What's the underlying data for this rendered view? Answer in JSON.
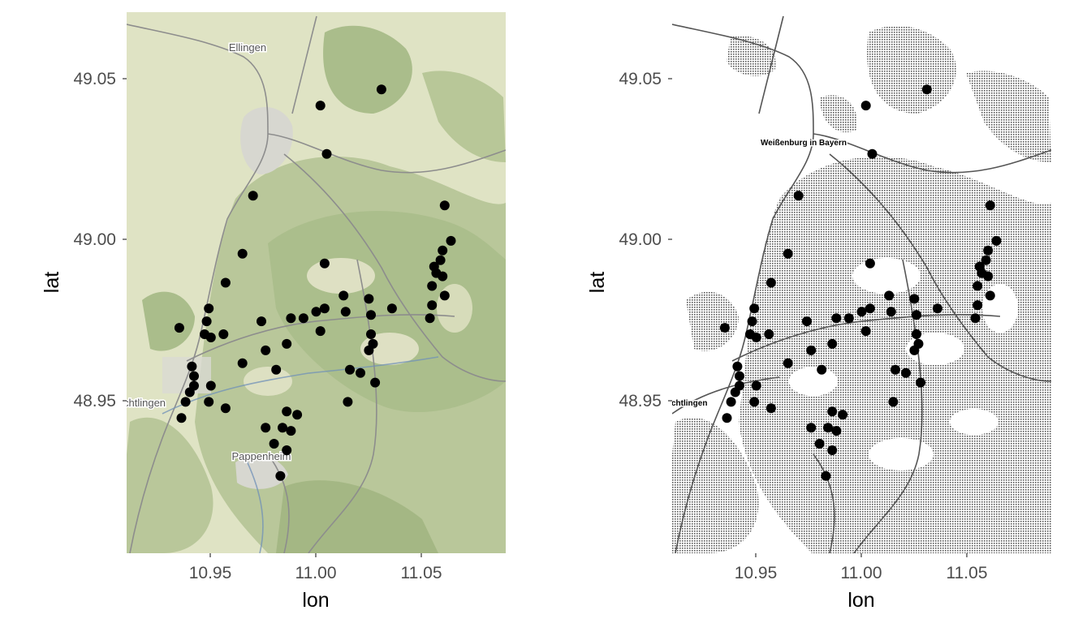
{
  "chart_data": [
    {
      "type": "scatter",
      "basemap": "terrain",
      "xlabel": "lon",
      "ylabel": "lat",
      "xlim": [
        10.91,
        11.09
      ],
      "ylim": [
        48.903,
        49.071
      ],
      "x_ticks": [
        "10.95",
        "11.00",
        "11.05"
      ],
      "y_ticks": [
        "48.95",
        "49.00",
        "49.05"
      ],
      "place_labels": [
        "Ellingen",
        "chtlingen",
        "Pappenheim"
      ]
    },
    {
      "type": "scatter",
      "basemap": "toner",
      "xlabel": "lon",
      "ylabel": "lat",
      "xlim": [
        10.91,
        11.09
      ],
      "ylim": [
        48.903,
        49.071
      ],
      "x_ticks": [
        "10.95",
        "11.00",
        "11.05"
      ],
      "y_ticks": [
        "48.95",
        "49.00",
        "49.05"
      ],
      "place_labels": [
        "Weißenburg in Bayern",
        "chtlingen"
      ]
    }
  ],
  "points": [
    [
      11.031,
      49.047
    ],
    [
      11.002,
      49.042
    ],
    [
      11.005,
      49.027
    ],
    [
      10.97,
      49.014
    ],
    [
      11.061,
      49.011
    ],
    [
      11.064,
      49.0
    ],
    [
      11.06,
      48.997
    ],
    [
      11.059,
      48.994
    ],
    [
      11.056,
      48.992
    ],
    [
      11.057,
      48.99
    ],
    [
      11.06,
      48.989
    ],
    [
      11.055,
      48.986
    ],
    [
      11.061,
      48.983
    ],
    [
      11.055,
      48.98
    ],
    [
      11.054,
      48.976
    ],
    [
      11.036,
      48.979
    ],
    [
      11.025,
      48.982
    ],
    [
      11.026,
      48.977
    ],
    [
      11.013,
      48.983
    ],
    [
      11.014,
      48.978
    ],
    [
      11.004,
      48.993
    ],
    [
      11.004,
      48.979
    ],
    [
      11.0,
      48.978
    ],
    [
      11.002,
      48.972
    ],
    [
      10.994,
      48.976
    ],
    [
      10.988,
      48.976
    ],
    [
      10.974,
      48.975
    ],
    [
      10.965,
      48.996
    ],
    [
      10.957,
      48.987
    ],
    [
      10.949,
      48.979
    ],
    [
      10.948,
      48.975
    ],
    [
      10.947,
      48.971
    ],
    [
      10.95,
      48.97
    ],
    [
      10.956,
      48.971
    ],
    [
      10.935,
      48.973
    ],
    [
      10.941,
      48.961
    ],
    [
      10.942,
      48.958
    ],
    [
      10.942,
      48.955
    ],
    [
      10.94,
      48.953
    ],
    [
      10.95,
      48.955
    ],
    [
      10.938,
      48.95
    ],
    [
      10.949,
      48.95
    ],
    [
      10.936,
      48.945
    ],
    [
      10.957,
      48.948
    ],
    [
      10.965,
      48.962
    ],
    [
      10.976,
      48.966
    ],
    [
      10.986,
      48.968
    ],
    [
      10.981,
      48.96
    ],
    [
      11.026,
      48.971
    ],
    [
      11.027,
      48.968
    ],
    [
      11.025,
      48.966
    ],
    [
      11.016,
      48.96
    ],
    [
      11.021,
      48.959
    ],
    [
      11.028,
      48.956
    ],
    [
      11.015,
      48.95
    ],
    [
      10.986,
      48.947
    ],
    [
      10.991,
      48.946
    ],
    [
      10.976,
      48.942
    ],
    [
      10.984,
      48.942
    ],
    [
      10.988,
      48.941
    ],
    [
      10.98,
      48.937
    ],
    [
      10.986,
      48.935
    ],
    [
      10.983,
      48.927
    ]
  ]
}
